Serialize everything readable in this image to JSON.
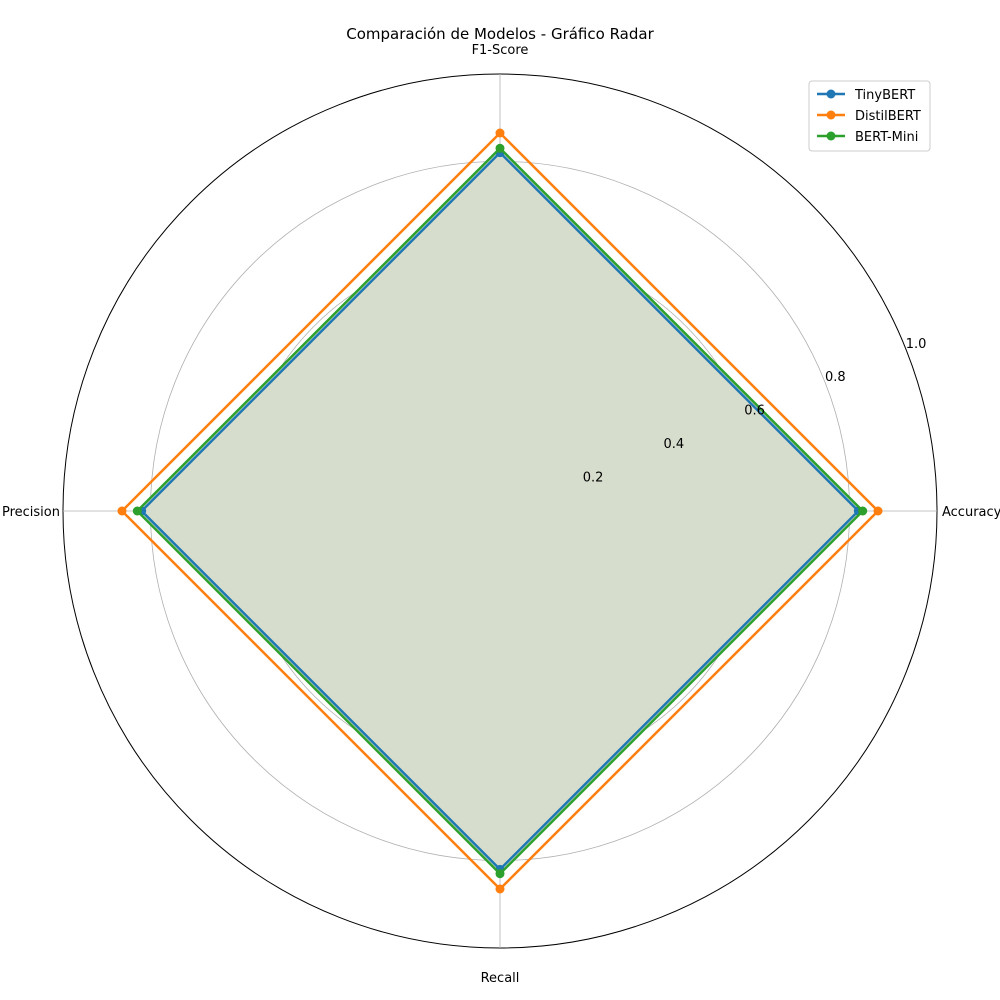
{
  "chart_data": {
    "type": "radar",
    "title": "Comparación de Modelos - Gráfico Radar",
    "axes": [
      "Accuracy",
      "F1-Score",
      "Precision",
      "Recall"
    ],
    "rlim": [
      0,
      1.0
    ],
    "rticks": [
      0.2,
      0.4,
      0.6,
      0.8,
      1.0
    ],
    "rtick_labels": [
      "0.2",
      "0.4",
      "0.6",
      "0.8",
      "1.0"
    ],
    "grid": true,
    "legend_position": "top-right",
    "series": [
      {
        "name": "TinyBERT",
        "values": [
          0.82,
          0.82,
          0.82,
          0.82
        ],
        "color": "#1f77b4",
        "filled": false
      },
      {
        "name": "DistilBERT",
        "values": [
          0.865,
          0.865,
          0.865,
          0.865
        ],
        "color": "#ff7f0e",
        "filled": false
      },
      {
        "name": "BERT-Mini",
        "values": [
          0.83,
          0.83,
          0.83,
          0.83
        ],
        "color": "#2ca02c",
        "filled": true,
        "fill": "#d6ddcd"
      }
    ]
  }
}
